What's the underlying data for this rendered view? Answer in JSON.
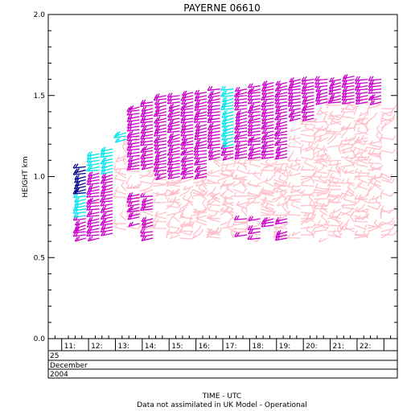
{
  "chart_data": {
    "type": "wind-profile-barbs",
    "title": "PAYERNE 06610",
    "ylabel": "HEIGHT km",
    "ylim": [
      0.0,
      2.0
    ],
    "yticks": [
      "0.0",
      "0.5",
      "1.0",
      "1.5",
      "2.0"
    ],
    "xlim": [
      10.5,
      23.5
    ],
    "xticks": [
      "11:",
      "12:",
      "13:",
      "14:",
      "15:",
      "16:",
      "17:",
      "18:",
      "19:",
      "20:",
      "21:",
      "22:"
    ],
    "date_rows": [
      "25",
      "December",
      "2004"
    ],
    "xlabel": "TIME - UTC",
    "footnote": "Data not assimilated in UK Model - Operational",
    "colors": {
      "cyan": "#00e5ee",
      "navy": "#00008b",
      "magenta": "#cc00cc",
      "pink": "#ffc0cb"
    },
    "profiles": [
      {
        "hour": 11.9,
        "bottom": 0.62,
        "top": 1.06
      },
      {
        "hour": 12.4,
        "bottom": 0.62,
        "top": 1.15
      },
      {
        "hour": 12.9,
        "bottom": 0.65,
        "top": 1.18
      },
      {
        "hour": 13.4,
        "bottom": 0.67,
        "top": 1.27
      },
      {
        "hour": 13.9,
        "bottom": 0.67,
        "top": 1.44
      },
      {
        "hour": 14.4,
        "bottom": 0.62,
        "top": 1.47
      },
      {
        "hour": 14.9,
        "bottom": 0.62,
        "top": 1.5
      },
      {
        "hour": 15.4,
        "bottom": 0.62,
        "top": 1.51
      },
      {
        "hour": 15.9,
        "bottom": 0.62,
        "top": 1.52
      },
      {
        "hour": 16.4,
        "bottom": 0.62,
        "top": 1.53
      },
      {
        "hour": 16.9,
        "bottom": 0.62,
        "top": 1.54
      },
      {
        "hour": 17.4,
        "bottom": 0.62,
        "top": 1.54
      },
      {
        "hour": 17.9,
        "bottom": 0.62,
        "top": 1.55
      },
      {
        "hour": 18.4,
        "bottom": 0.62,
        "top": 1.56
      },
      {
        "hour": 18.9,
        "bottom": 0.62,
        "top": 1.58
      },
      {
        "hour": 19.4,
        "bottom": 0.62,
        "top": 1.59
      },
      {
        "hour": 19.9,
        "bottom": 0.62,
        "top": 1.6
      },
      {
        "hour": 20.4,
        "bottom": 0.62,
        "top": 1.61
      },
      {
        "hour": 20.9,
        "bottom": 0.62,
        "top": 1.6
      },
      {
        "hour": 21.4,
        "bottom": 0.62,
        "top": 1.61
      },
      {
        "hour": 21.9,
        "bottom": 0.62,
        "top": 1.62
      },
      {
        "hour": 22.4,
        "bottom": 0.62,
        "top": 1.61
      },
      {
        "hour": 22.9,
        "bottom": 0.62,
        "top": 1.61
      }
    ]
  }
}
